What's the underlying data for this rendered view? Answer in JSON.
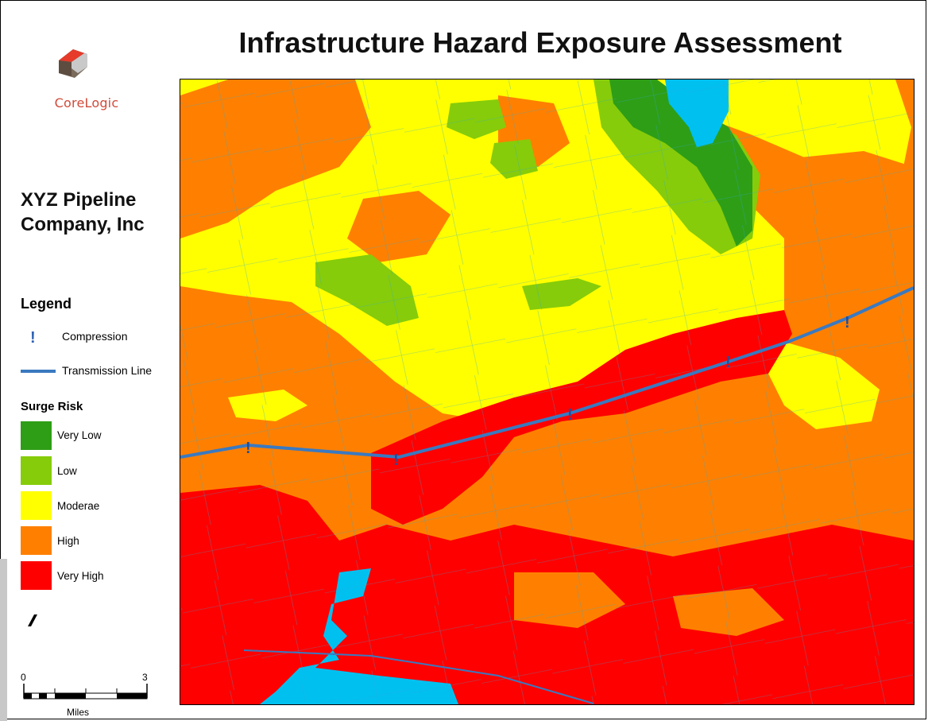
{
  "title": "Infrastructure Hazard Exposure Assessment",
  "logo": {
    "text": "CoreLogic"
  },
  "company": {
    "line1": "XYZ Pipeline",
    "line2": "Company, Inc"
  },
  "legend": {
    "title": "Legend",
    "compression": {
      "symbol": "!",
      "label": "Compression"
    },
    "transmission": {
      "label": "Transmission Line",
      "color": "#3a79c0"
    },
    "surge_title": "Surge Risk",
    "classes": [
      {
        "label": "Very Low",
        "color": "#2e9e16"
      },
      {
        "label": "Low",
        "color": "#86cc0a"
      },
      {
        "label": "Moderae",
        "color": "#ffff00"
      },
      {
        "label": "High",
        "color": "#ff8000"
      },
      {
        "label": "Very High",
        "color": "#ff0000"
      }
    ]
  },
  "scale": {
    "start": "0",
    "end": "3",
    "unit": "Miles"
  },
  "colors": {
    "water": "#00c0f0",
    "pipeline": "#3a79c0"
  }
}
